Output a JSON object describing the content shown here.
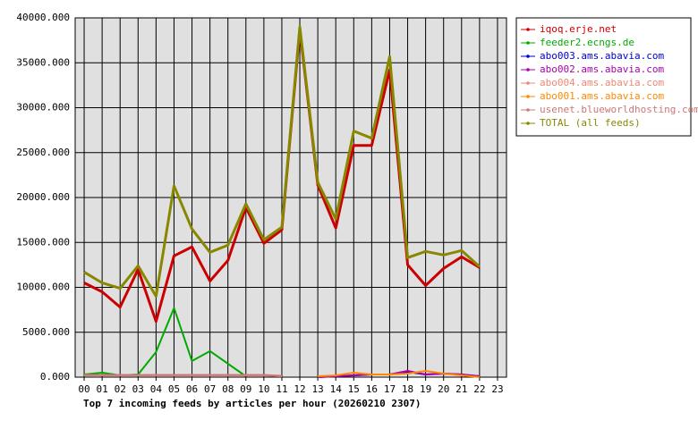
{
  "chart_data": {
    "type": "line",
    "title": "Top 7 incoming feeds by articles per hour (20260210 2307)",
    "categories": [
      "00",
      "01",
      "02",
      "03",
      "04",
      "05",
      "06",
      "07",
      "08",
      "09",
      "10",
      "11",
      "12",
      "13",
      "14",
      "15",
      "16",
      "17",
      "18",
      "19",
      "20",
      "21",
      "22",
      "23"
    ],
    "series": [
      {
        "name": "iqoq.erje.net",
        "color": "#cc0000",
        "values": [
          10500,
          9500,
          7800,
          12000,
          6200,
          13500,
          14500,
          10700,
          13000,
          18900,
          14900,
          16400,
          38700,
          21400,
          16600,
          25800,
          25800,
          34200,
          12500,
          10200,
          12100,
          13400,
          12200,
          null
        ]
      },
      {
        "name": "feeder2.ecngs.de",
        "color": "#00aa00",
        "values": [
          300,
          500,
          200,
          300,
          2800,
          7700,
          1800,
          2900,
          1500,
          100,
          null,
          null,
          null,
          null,
          null,
          null,
          null,
          null,
          null,
          null,
          null,
          null,
          null,
          null
        ]
      },
      {
        "name": "abo003.ams.abavia.com",
        "color": "#0000cc",
        "values": [
          null,
          null,
          null,
          null,
          null,
          null,
          null,
          null,
          null,
          null,
          null,
          null,
          null,
          0,
          100,
          200,
          300,
          300,
          600,
          300,
          400,
          300,
          100,
          null
        ]
      },
      {
        "name": "abo002.ams.abavia.com",
        "color": "#aa00aa",
        "values": [
          null,
          null,
          null,
          null,
          null,
          null,
          null,
          null,
          null,
          null,
          null,
          null,
          null,
          0,
          100,
          200,
          300,
          300,
          700,
          300,
          400,
          300,
          100,
          null
        ]
      },
      {
        "name": "abo004.ams.abavia.com",
        "color": "#ee8877",
        "values": [
          200,
          200,
          200,
          200,
          200,
          200,
          200,
          200,
          200,
          200,
          200,
          100,
          null,
          null,
          null,
          null,
          null,
          null,
          null,
          null,
          null,
          null,
          null,
          null
        ]
      },
      {
        "name": "abo001.ams.abavia.com",
        "color": "#ff8800",
        "values": [
          null,
          null,
          null,
          null,
          null,
          null,
          null,
          null,
          null,
          null,
          null,
          null,
          null,
          100,
          200,
          500,
          300,
          300,
          400,
          700,
          400,
          200,
          0,
          null
        ]
      },
      {
        "name": "usenet.blueworldhosting.com",
        "color": "#cc7777",
        "values": [
          250,
          250,
          250,
          250,
          250,
          250,
          250,
          250,
          250,
          250,
          250,
          150,
          null,
          null,
          null,
          null,
          null,
          null,
          null,
          null,
          null,
          null,
          null,
          null
        ]
      },
      {
        "name": "TOTAL (all feeds)",
        "color": "#888800",
        "values": [
          11700,
          10500,
          9900,
          12400,
          9000,
          21300,
          16500,
          13900,
          14700,
          19300,
          15300,
          16700,
          39000,
          21700,
          17600,
          27400,
          26600,
          35700,
          13300,
          14000,
          13600,
          14100,
          12300,
          null
        ]
      }
    ],
    "ylim": [
      0,
      40000
    ],
    "yticks": [
      {
        "value": 0,
        "label": "0.000"
      },
      {
        "value": 5000,
        "label": "5000.000"
      },
      {
        "value": 10000,
        "label": "10000.000"
      },
      {
        "value": 15000,
        "label": "15000.000"
      },
      {
        "value": 20000,
        "label": "20000.000"
      },
      {
        "value": 25000,
        "label": "25000.000"
      },
      {
        "value": 30000,
        "label": "30000.000"
      },
      {
        "value": 35000,
        "label": "35000.000"
      },
      {
        "value": 40000,
        "label": "40000.000"
      }
    ],
    "grid": true
  }
}
